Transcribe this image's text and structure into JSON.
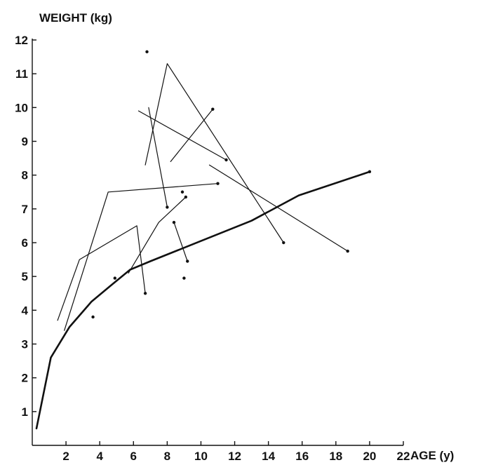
{
  "chart_data": {
    "type": "line",
    "title": "WEIGHT (kg)",
    "xlabel": "AGE (y)",
    "ylabel": "WEIGHT (kg)",
    "xlim": [
      0,
      22
    ],
    "ylim": [
      0,
      12
    ],
    "x_ticks": [
      "2",
      "4",
      "6",
      "8",
      "10",
      "12",
      "14",
      "16",
      "18",
      "20",
      "22"
    ],
    "y_ticks": [
      "1",
      "2",
      "3",
      "4",
      "5",
      "6",
      "7",
      "8",
      "9",
      "10",
      "11",
      "12"
    ],
    "grid": false,
    "series": [
      {
        "style": "thick",
        "points": [
          [
            0.25,
            0.5
          ],
          [
            1.1,
            2.6
          ],
          [
            2.2,
            3.5
          ],
          [
            3.5,
            4.25
          ],
          [
            4.7,
            4.75
          ],
          [
            5.8,
            5.2
          ],
          [
            7.0,
            5.45
          ],
          [
            10.0,
            6.05
          ],
          [
            13.0,
            6.65
          ],
          [
            15.8,
            7.4
          ],
          [
            20.0,
            8.1
          ]
        ],
        "markers": [
          20.0
        ]
      },
      {
        "style": "thin",
        "points": [
          [
            1.5,
            3.7
          ],
          [
            2.8,
            5.5
          ],
          [
            6.2,
            6.5
          ],
          [
            6.7,
            4.5
          ]
        ],
        "markers": [
          6.7
        ]
      },
      {
        "style": "thin",
        "points": [
          [
            1.9,
            3.4
          ],
          [
            4.5,
            7.5
          ],
          [
            11.0,
            7.75
          ]
        ],
        "markers": [
          11.0
        ]
      },
      {
        "style": "thin",
        "points": [
          [
            5.7,
            5.1
          ],
          [
            7.5,
            6.6
          ],
          [
            9.1,
            7.35
          ]
        ],
        "markers": [
          9.1
        ]
      },
      {
        "style": "thin",
        "points": [
          [
            6.7,
            8.3
          ],
          [
            8.0,
            11.3
          ],
          [
            14.9,
            6.0
          ]
        ],
        "markers": [
          14.9
        ]
      },
      {
        "style": "thin",
        "points": [
          [
            6.9,
            10.0
          ],
          [
            8.0,
            7.05
          ]
        ],
        "markers": [
          8.0
        ]
      },
      {
        "style": "thin",
        "points": [
          [
            6.3,
            9.9
          ],
          [
            11.5,
            8.45
          ]
        ],
        "markers": [
          11.5
        ]
      },
      {
        "style": "thin",
        "points": [
          [
            8.2,
            8.4
          ],
          [
            10.7,
            9.95
          ]
        ],
        "markers": [
          10.7
        ]
      },
      {
        "style": "thin",
        "points": [
          [
            10.5,
            8.3
          ],
          [
            18.7,
            5.75
          ]
        ],
        "markers": [
          18.7
        ]
      },
      {
        "style": "thin",
        "points": [
          [
            8.4,
            6.6
          ],
          [
            9.2,
            5.45
          ]
        ],
        "markers": [
          8.4,
          9.2
        ]
      }
    ],
    "isolated_points": [
      [
        6.8,
        11.65
      ],
      [
        8.9,
        7.5
      ],
      [
        4.9,
        4.95
      ],
      [
        9.0,
        4.95
      ],
      [
        3.6,
        3.8
      ]
    ]
  }
}
